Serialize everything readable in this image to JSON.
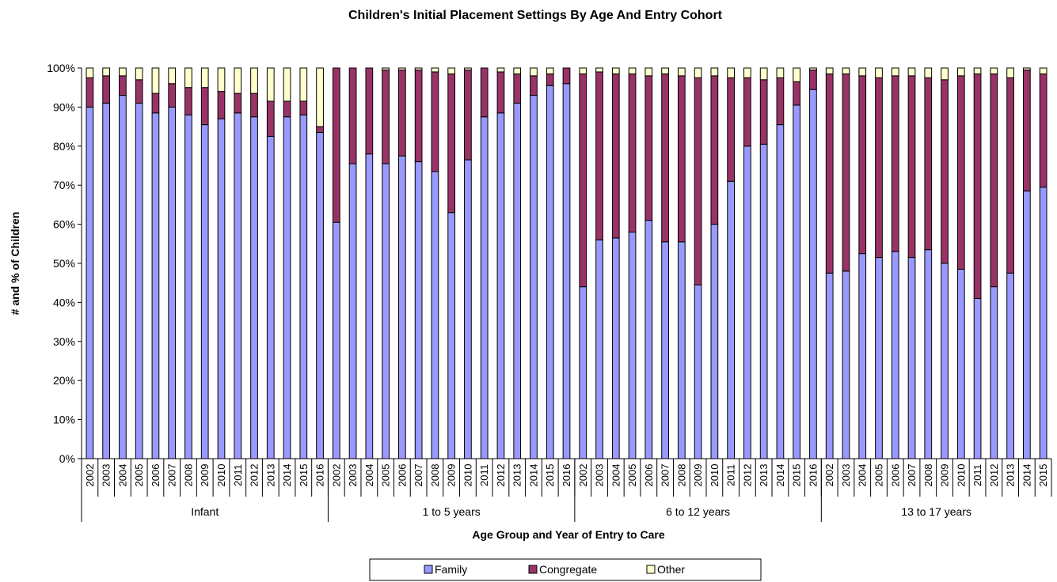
{
  "chart_data": {
    "type": "bar",
    "stacked": true,
    "title": "Children's Initial Placement Settings By Age And Entry Cohort",
    "xlabel": "Age Group and Year of Entry to Care",
    "ylabel": "# and % of Children",
    "ylim": [
      0,
      100
    ],
    "yticks": [
      "0%",
      "10%",
      "20%",
      "30%",
      "40%",
      "50%",
      "60%",
      "70%",
      "80%",
      "90%",
      "100%"
    ],
    "legend_position": "bottom",
    "colors": {
      "Family": "#9999ff",
      "Congregate": "#993366",
      "Other": "#ffffcc",
      "outline": "#000000"
    },
    "groups": [
      {
        "name": "Infant",
        "years": [
          "2002",
          "2003",
          "2004",
          "2005",
          "2006",
          "2007",
          "2008",
          "2009",
          "2010",
          "2011",
          "2012",
          "2013",
          "2014",
          "2015",
          "2016"
        ]
      },
      {
        "name": "1 to 5 years",
        "years": [
          "2002",
          "2003",
          "2004",
          "2005",
          "2006",
          "2007",
          "2008",
          "2009",
          "2010",
          "2011",
          "2012",
          "2013",
          "2014",
          "2015",
          "2016"
        ]
      },
      {
        "name": "6 to 12 years",
        "years": [
          "2002",
          "2003",
          "2004",
          "2005",
          "2006",
          "2007",
          "2008",
          "2009",
          "2010",
          "2011",
          "2012",
          "2013",
          "2014",
          "2015",
          "2016"
        ]
      },
      {
        "name": "13 to 17 years",
        "years": [
          "2002",
          "2003",
          "2004",
          "2005",
          "2006",
          "2007",
          "2008",
          "2009",
          "2010",
          "2011",
          "2012",
          "2013",
          "2014",
          "2015"
        ]
      }
    ],
    "series": [
      {
        "name": "Family",
        "values": [
          90,
          91,
          93,
          91,
          88.5,
          90,
          88,
          85.5,
          87,
          88.5,
          87.5,
          82.5,
          87.5,
          88,
          83.5,
          60.5,
          75.5,
          78,
          75.5,
          77.5,
          76,
          73.5,
          63,
          76.5,
          87.5,
          88.5,
          91,
          93,
          95.5,
          96,
          44,
          56,
          56.5,
          58,
          61,
          55.5,
          55.5,
          44.5,
          60,
          71,
          80,
          80.5,
          85.5,
          90.5,
          94.5,
          47.5,
          48,
          52.5,
          51.5,
          53,
          51.5,
          53.5,
          50,
          48.5,
          41,
          44,
          47.5,
          68.5,
          69.5
        ]
      },
      {
        "name": "Congregate",
        "values": [
          7.5,
          7,
          5,
          6,
          5,
          6,
          7,
          9.5,
          7,
          5,
          6,
          9,
          4,
          3.5,
          1.5,
          39.5,
          24.5,
          22,
          24,
          22,
          23.5,
          25.5,
          35.5,
          23,
          12.5,
          10.5,
          7.5,
          5,
          3,
          4,
          54.5,
          43,
          42,
          40.5,
          37,
          43,
          42.5,
          53,
          38,
          26.5,
          17.5,
          16.5,
          12,
          6,
          5,
          51,
          50.5,
          45.5,
          46,
          45,
          46.5,
          44,
          47,
          49.5,
          57.5,
          54.5,
          50,
          31,
          29
        ]
      },
      {
        "name": "Other",
        "values": [
          2.5,
          2,
          2,
          3,
          6.5,
          4,
          5,
          5,
          6,
          6.5,
          6.5,
          8.5,
          8.5,
          8.5,
          15,
          0,
          0,
          0,
          0.5,
          0.5,
          0.5,
          1,
          1.5,
          0.5,
          0,
          1,
          1.5,
          2,
          1.5,
          0,
          1.5,
          1,
          1.5,
          1.5,
          2,
          1.5,
          2,
          2.5,
          2,
          2.5,
          2.5,
          3,
          2.5,
          3.5,
          0.5,
          1.5,
          1.5,
          2,
          2.5,
          2,
          2,
          2.5,
          3,
          2,
          1.5,
          1.5,
          2.5,
          0.5,
          1.5
        ]
      }
    ]
  }
}
